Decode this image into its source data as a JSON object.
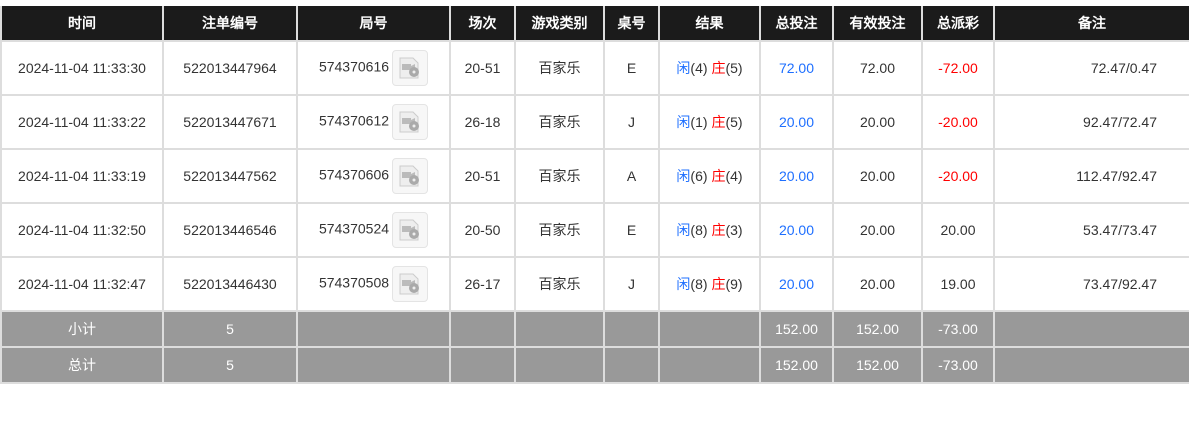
{
  "columns": [
    "时间",
    "注单编号",
    "局号",
    "场次",
    "游戏类别",
    "桌号",
    "结果",
    "总投注",
    "有效投注",
    "总派彩",
    "备注"
  ],
  "rows": [
    {
      "time": "2024-11-04 11:33:30",
      "bet_id": "522013447964",
      "round": "574370616",
      "session": "20-51",
      "game": "百家乐",
      "table": "E",
      "player_label": "闲",
      "player": "(4)",
      "banker_label": "庄",
      "banker": "(5)",
      "total_bet": "72.00",
      "valid_bet": "72.00",
      "payout": "-72.00",
      "payout_negative": true,
      "remark": "72.47/0.47"
    },
    {
      "time": "2024-11-04 11:33:22",
      "bet_id": "522013447671",
      "round": "574370612",
      "session": "26-18",
      "game": "百家乐",
      "table": "J",
      "player_label": "闲",
      "player": "(1)",
      "banker_label": "庄",
      "banker": "(5)",
      "total_bet": "20.00",
      "valid_bet": "20.00",
      "payout": "-20.00",
      "payout_negative": true,
      "remark": "92.47/72.47"
    },
    {
      "time": "2024-11-04 11:33:19",
      "bet_id": "522013447562",
      "round": "574370606",
      "session": "20-51",
      "game": "百家乐",
      "table": "A",
      "player_label": "闲",
      "player": "(6)",
      "banker_label": "庄",
      "banker": "(4)",
      "total_bet": "20.00",
      "valid_bet": "20.00",
      "payout": "-20.00",
      "payout_negative": true,
      "remark": "112.47/92.47"
    },
    {
      "time": "2024-11-04 11:32:50",
      "bet_id": "522013446546",
      "round": "574370524",
      "session": "20-50",
      "game": "百家乐",
      "table": "E",
      "player_label": "闲",
      "player": "(8)",
      "banker_label": "庄",
      "banker": "(3)",
      "total_bet": "20.00",
      "valid_bet": "20.00",
      "payout": "20.00",
      "payout_negative": false,
      "remark": "53.47/73.47"
    },
    {
      "time": "2024-11-04 11:32:47",
      "bet_id": "522013446430",
      "round": "574370508",
      "session": "26-17",
      "game": "百家乐",
      "table": "J",
      "player_label": "闲",
      "player": "(8)",
      "banker_label": "庄",
      "banker": "(9)",
      "total_bet": "20.00",
      "valid_bet": "20.00",
      "payout": "19.00",
      "payout_negative": false,
      "remark": "73.47/92.47"
    }
  ],
  "subtotal": {
    "label": "小计",
    "count": "5",
    "total_bet": "152.00",
    "valid_bet": "152.00",
    "payout": "-73.00"
  },
  "total": {
    "label": "总计",
    "count": "5",
    "total_bet": "152.00",
    "valid_bet": "152.00",
    "payout": "-73.00"
  },
  "colors": {
    "header_bg": "#1b1b1b",
    "summary_bg": "#999999",
    "blue": "#1e6fff",
    "red": "#ff0000"
  },
  "icons": {
    "replay": "video-replay-icon"
  }
}
